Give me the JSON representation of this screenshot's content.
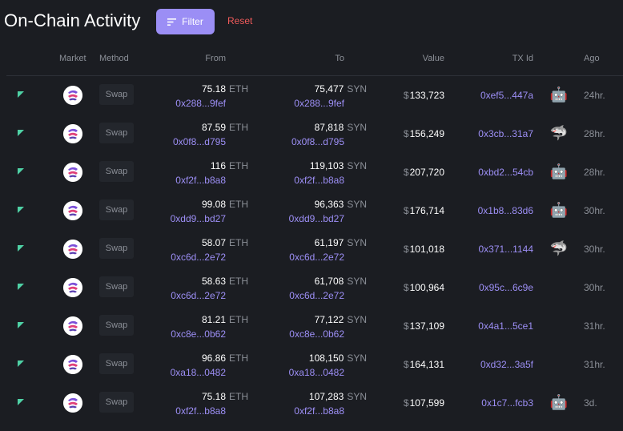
{
  "header": {
    "title": "On-Chain Activity",
    "filter_label": "Filter",
    "reset_label": "Reset"
  },
  "columns": {
    "market": "Market",
    "method": "Method",
    "from": "From",
    "to": "To",
    "value": "Value",
    "txid": "TX Id",
    "ago": "Ago"
  },
  "colors": {
    "accent": "#9b8ef5",
    "reset": "#ef5a5a",
    "buy_indicator": "#4fd1a5",
    "address": "#9d8ff6"
  },
  "rows": [
    {
      "method": "Swap",
      "from_amount": "75.18",
      "from_unit": "ETH",
      "from_addr": "0x288...9fef",
      "to_amount": "75,477",
      "to_unit": "SYN",
      "to_addr": "0x288...9fef",
      "value_cur": "$",
      "value": "133,723",
      "txid": "0xef5...447a",
      "tag": "🤖",
      "tag_name": "robot",
      "ago": "24hr."
    },
    {
      "method": "Swap",
      "from_amount": "87.59",
      "from_unit": "ETH",
      "from_addr": "0x0f8...d795",
      "to_amount": "87,818",
      "to_unit": "SYN",
      "to_addr": "0x0f8...d795",
      "value_cur": "$",
      "value": "156,249",
      "txid": "0x3cb...31a7",
      "tag": "🦈",
      "tag_name": "shark",
      "ago": "28hr."
    },
    {
      "method": "Swap",
      "from_amount": "116",
      "from_unit": "ETH",
      "from_addr": "0xf2f...b8a8",
      "to_amount": "119,103",
      "to_unit": "SYN",
      "to_addr": "0xf2f...b8a8",
      "value_cur": "$",
      "value": "207,720",
      "txid": "0xbd2...54cb",
      "tag": "🤖",
      "tag_name": "robot",
      "ago": "28hr."
    },
    {
      "method": "Swap",
      "from_amount": "99.08",
      "from_unit": "ETH",
      "from_addr": "0xdd9...bd27",
      "to_amount": "96,363",
      "to_unit": "SYN",
      "to_addr": "0xdd9...bd27",
      "value_cur": "$",
      "value": "176,714",
      "txid": "0x1b8...83d6",
      "tag": "🤖",
      "tag_name": "robot",
      "ago": "30hr."
    },
    {
      "method": "Swap",
      "from_amount": "58.07",
      "from_unit": "ETH",
      "from_addr": "0xc6d...2e72",
      "to_amount": "61,197",
      "to_unit": "SYN",
      "to_addr": "0xc6d...2e72",
      "value_cur": "$",
      "value": "101,018",
      "txid": "0x371...1144",
      "tag": "🦈",
      "tag_name": "shark",
      "ago": "30hr."
    },
    {
      "method": "Swap",
      "from_amount": "58.63",
      "from_unit": "ETH",
      "from_addr": "0xc6d...2e72",
      "to_amount": "61,708",
      "to_unit": "SYN",
      "to_addr": "0xc6d...2e72",
      "value_cur": "$",
      "value": "100,964",
      "txid": "0x95c...6c9e",
      "tag": "",
      "tag_name": "",
      "ago": "30hr."
    },
    {
      "method": "Swap",
      "from_amount": "81.21",
      "from_unit": "ETH",
      "from_addr": "0xc8e...0b62",
      "to_amount": "77,122",
      "to_unit": "SYN",
      "to_addr": "0xc8e...0b62",
      "value_cur": "$",
      "value": "137,109",
      "txid": "0x4a1...5ce1",
      "tag": "",
      "tag_name": "",
      "ago": "31hr."
    },
    {
      "method": "Swap",
      "from_amount": "96.86",
      "from_unit": "ETH",
      "from_addr": "0xa18...0482",
      "to_amount": "108,150",
      "to_unit": "SYN",
      "to_addr": "0xa18...0482",
      "value_cur": "$",
      "value": "164,131",
      "txid": "0xd32...3a5f",
      "tag": "",
      "tag_name": "",
      "ago": "31hr."
    },
    {
      "method": "Swap",
      "from_amount": "75.18",
      "from_unit": "ETH",
      "from_addr": "0xf2f...b8a8",
      "to_amount": "107,283",
      "to_unit": "SYN",
      "to_addr": "0xf2f...b8a8",
      "value_cur": "$",
      "value": "107,599",
      "txid": "0x1c7...fcb3",
      "tag": "🤖",
      "tag_name": "robot",
      "ago": "3d."
    }
  ]
}
